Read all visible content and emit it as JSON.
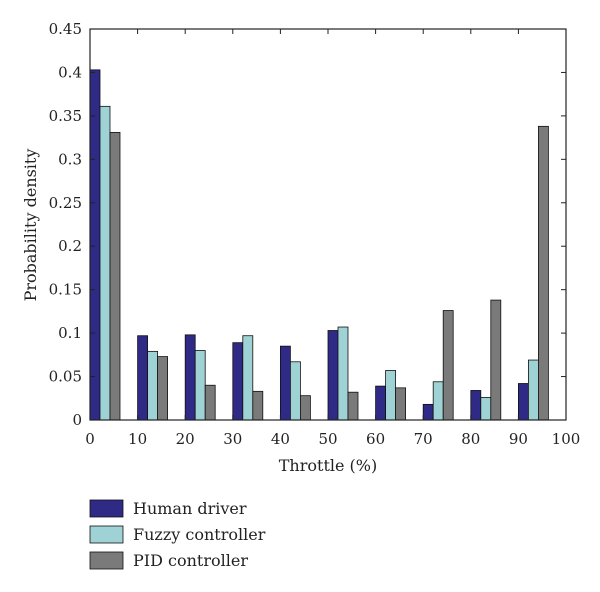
{
  "chart_data": {
    "type": "bar",
    "title": "",
    "xlabel": "Throttle (%)",
    "ylabel": "Probability density",
    "x_ticks": [
      0,
      10,
      20,
      30,
      40,
      50,
      60,
      70,
      80,
      90,
      100
    ],
    "y_ticks": [
      "0",
      "0.05",
      "0.1",
      "0.15",
      "0.2",
      "0.25",
      "0.3",
      "0.35",
      "0.4",
      "0.45"
    ],
    "xlim": [
      0,
      100
    ],
    "ylim": [
      0,
      0.45
    ],
    "bin_starts": [
      0,
      10,
      20,
      30,
      40,
      50,
      60,
      70,
      80,
      90
    ],
    "series": [
      {
        "name": "Human driver",
        "color": "#2e2a86",
        "values": [
          0.403,
          0.097,
          0.098,
          0.089,
          0.085,
          0.103,
          0.039,
          0.018,
          0.034,
          0.042
        ]
      },
      {
        "name": "Fuzzy controller",
        "color": "#9fd2d4",
        "values": [
          0.361,
          0.079,
          0.08,
          0.097,
          0.067,
          0.107,
          0.057,
          0.044,
          0.026,
          0.069
        ]
      },
      {
        "name": "PID controller",
        "color": "#7a7a7a",
        "values": [
          0.331,
          0.073,
          0.04,
          0.033,
          0.028,
          0.032,
          0.037,
          0.126,
          0.138,
          0.338
        ]
      }
    ],
    "grid": false,
    "legend_position": "bottom-left"
  }
}
